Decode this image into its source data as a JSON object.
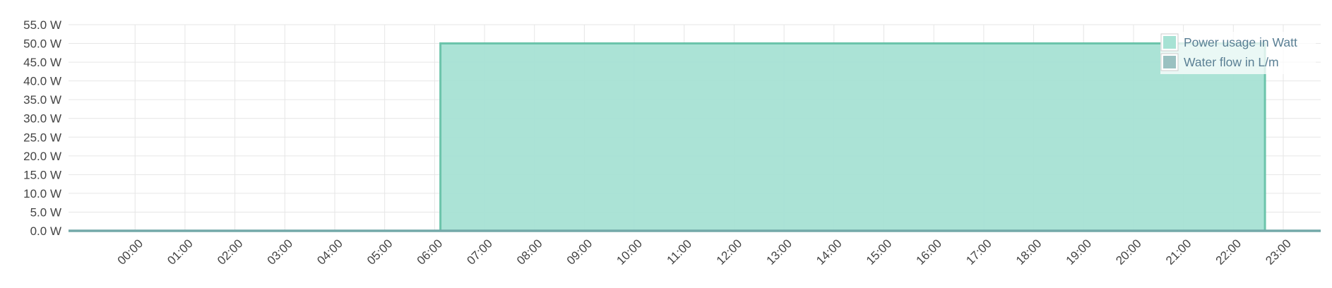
{
  "chart_data": {
    "type": "area",
    "title": "",
    "xlabel": "",
    "ylabel": "",
    "ylim": [
      0,
      55
    ],
    "xlim": [
      "-1:20",
      "23:45"
    ],
    "y_ticks": [
      "0.0 W",
      "5.0 W",
      "10.0 W",
      "15.0 W",
      "20.0 W",
      "25.0 W",
      "30.0 W",
      "35.0 W",
      "40.0 W",
      "45.0 W",
      "50.0 W",
      "55.0 W"
    ],
    "y_tick_values": [
      0,
      5,
      10,
      15,
      20,
      25,
      30,
      35,
      40,
      45,
      50,
      55
    ],
    "x_ticks": [
      "00:00",
      "01:00",
      "02:00",
      "03:00",
      "04:00",
      "05:00",
      "06:00",
      "07:00",
      "08:00",
      "09:00",
      "10:00",
      "11:00",
      "12:00",
      "13:00",
      "14:00",
      "15:00",
      "16:00",
      "17:00",
      "18:00",
      "19:00",
      "20:00",
      "21:00",
      "22:00",
      "23:00"
    ],
    "grid": true,
    "legend_position": "top-right",
    "series": [
      {
        "name": "Power usage in Watt",
        "color": "#a7e2d4",
        "line_color": "#6cc4ab",
        "points": [
          {
            "x": "-1:20",
            "y": 0
          },
          {
            "x": "06:07",
            "y": 0
          },
          {
            "x": "06:07",
            "y": 50
          },
          {
            "x": "22:38",
            "y": 50
          },
          {
            "x": "22:38",
            "y": 0
          },
          {
            "x": "23:45",
            "y": 0
          }
        ]
      },
      {
        "name": "Water flow in L/m",
        "color": "#9ac1c1",
        "line_color": "#73a9a9",
        "points": [
          {
            "x": "-1:20",
            "y": 0
          },
          {
            "x": "23:45",
            "y": 0
          }
        ]
      }
    ]
  }
}
